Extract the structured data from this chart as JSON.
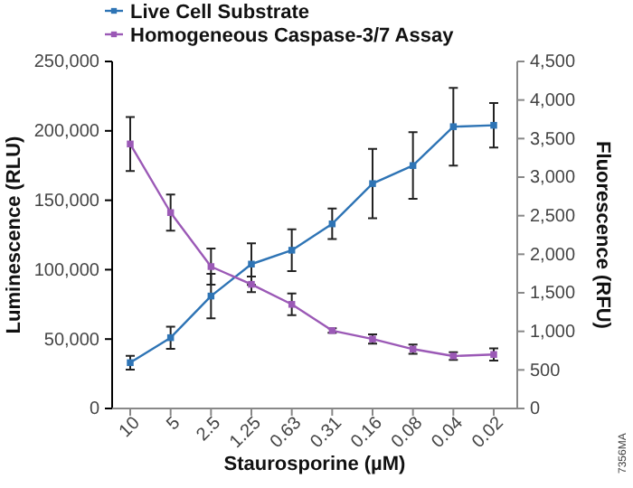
{
  "chart_data": {
    "type": "line",
    "xlabel": "Staurosporine (µM)",
    "ylabel": "Luminescence (RLU)",
    "y2label": "Fluorescence (RFU)",
    "categories": [
      "10",
      "5",
      "2.5",
      "1.25",
      "0.63",
      "0.31",
      "0.16",
      "0.08",
      "0.04",
      "0.02"
    ],
    "series": [
      {
        "name": "Live Cell Substrate",
        "color": "#2e74b5",
        "values": [
          33000,
          51000,
          81000,
          104000,
          114000,
          133000,
          162000,
          175000,
          203000,
          204000
        ],
        "errors": [
          5000,
          8000,
          16000,
          15000,
          15000,
          11000,
          25000,
          24000,
          28000,
          16000
        ]
      },
      {
        "name": "Homogeneous Caspase-3/7 Assay",
        "color": "#9b59b6",
        "axis": "y2",
        "values": [
          3430,
          2540,
          1840,
          1610,
          1350,
          1010,
          900,
          770,
          680,
          700
        ],
        "errors": [
          350,
          235,
          235,
          100,
          140,
          30,
          60,
          60,
          50,
          80
        ]
      }
    ],
    "ylim": [
      0,
      250000
    ],
    "yticks": [
      {
        "value": 0,
        "label": "0"
      },
      {
        "value": 50000,
        "label": "50,000"
      },
      {
        "value": 100000,
        "label": "100,000"
      },
      {
        "value": 150000,
        "label": "150,000"
      },
      {
        "value": 200000,
        "label": "200,000"
      },
      {
        "value": 250000,
        "label": "250,000"
      }
    ],
    "y2lim": [
      0,
      4500
    ],
    "y2ticks": [
      {
        "value": 0,
        "label": "0"
      },
      {
        "value": 500,
        "label": "500"
      },
      {
        "value": 1000,
        "label": "1,000"
      },
      {
        "value": 1500,
        "label": "1,500"
      },
      {
        "value": 2000,
        "label": "2,000"
      },
      {
        "value": 2500,
        "label": "2,500"
      },
      {
        "value": 3000,
        "label": "3,000"
      },
      {
        "value": 3500,
        "label": "3,500"
      },
      {
        "value": 4000,
        "label": "4,000"
      },
      {
        "value": 4500,
        "label": "4,500"
      }
    ],
    "marker": "square",
    "grid": false,
    "legend": "top left",
    "annotations": [
      "7356MA"
    ]
  }
}
